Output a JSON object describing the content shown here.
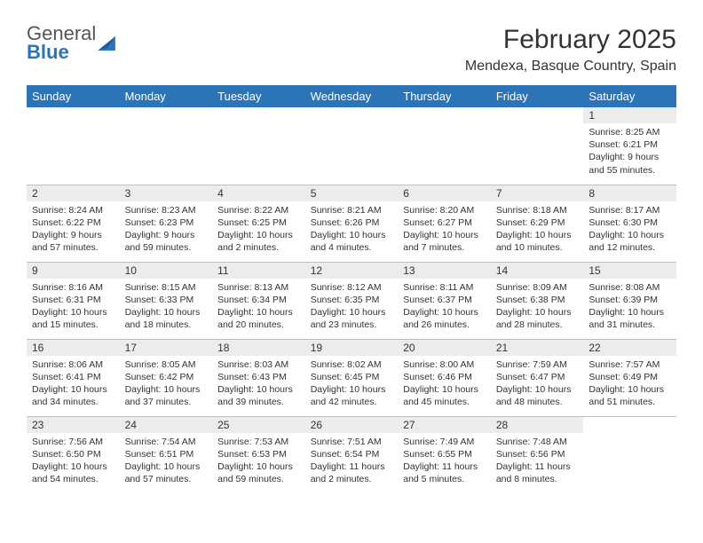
{
  "brand": {
    "line1": "General",
    "line2": "Blue"
  },
  "title": "February 2025",
  "location": "Mendexa, Basque Country, Spain",
  "colors": {
    "header_bg": "#2b74b8",
    "header_text": "#ffffff",
    "daynum_bg": "#ececec",
    "border": "#bfbfbf",
    "text": "#333333",
    "background": "#ffffff"
  },
  "day_headers": [
    "Sunday",
    "Monday",
    "Tuesday",
    "Wednesday",
    "Thursday",
    "Friday",
    "Saturday"
  ],
  "weeks": [
    [
      {
        "n": "",
        "sr": "",
        "ss": "",
        "dl": ""
      },
      {
        "n": "",
        "sr": "",
        "ss": "",
        "dl": ""
      },
      {
        "n": "",
        "sr": "",
        "ss": "",
        "dl": ""
      },
      {
        "n": "",
        "sr": "",
        "ss": "",
        "dl": ""
      },
      {
        "n": "",
        "sr": "",
        "ss": "",
        "dl": ""
      },
      {
        "n": "",
        "sr": "",
        "ss": "",
        "dl": ""
      },
      {
        "n": "1",
        "sr": "Sunrise: 8:25 AM",
        "ss": "Sunset: 6:21 PM",
        "dl": "Daylight: 9 hours and 55 minutes."
      }
    ],
    [
      {
        "n": "2",
        "sr": "Sunrise: 8:24 AM",
        "ss": "Sunset: 6:22 PM",
        "dl": "Daylight: 9 hours and 57 minutes."
      },
      {
        "n": "3",
        "sr": "Sunrise: 8:23 AM",
        "ss": "Sunset: 6:23 PM",
        "dl": "Daylight: 9 hours and 59 minutes."
      },
      {
        "n": "4",
        "sr": "Sunrise: 8:22 AM",
        "ss": "Sunset: 6:25 PM",
        "dl": "Daylight: 10 hours and 2 minutes."
      },
      {
        "n": "5",
        "sr": "Sunrise: 8:21 AM",
        "ss": "Sunset: 6:26 PM",
        "dl": "Daylight: 10 hours and 4 minutes."
      },
      {
        "n": "6",
        "sr": "Sunrise: 8:20 AM",
        "ss": "Sunset: 6:27 PM",
        "dl": "Daylight: 10 hours and 7 minutes."
      },
      {
        "n": "7",
        "sr": "Sunrise: 8:18 AM",
        "ss": "Sunset: 6:29 PM",
        "dl": "Daylight: 10 hours and 10 minutes."
      },
      {
        "n": "8",
        "sr": "Sunrise: 8:17 AM",
        "ss": "Sunset: 6:30 PM",
        "dl": "Daylight: 10 hours and 12 minutes."
      }
    ],
    [
      {
        "n": "9",
        "sr": "Sunrise: 8:16 AM",
        "ss": "Sunset: 6:31 PM",
        "dl": "Daylight: 10 hours and 15 minutes."
      },
      {
        "n": "10",
        "sr": "Sunrise: 8:15 AM",
        "ss": "Sunset: 6:33 PM",
        "dl": "Daylight: 10 hours and 18 minutes."
      },
      {
        "n": "11",
        "sr": "Sunrise: 8:13 AM",
        "ss": "Sunset: 6:34 PM",
        "dl": "Daylight: 10 hours and 20 minutes."
      },
      {
        "n": "12",
        "sr": "Sunrise: 8:12 AM",
        "ss": "Sunset: 6:35 PM",
        "dl": "Daylight: 10 hours and 23 minutes."
      },
      {
        "n": "13",
        "sr": "Sunrise: 8:11 AM",
        "ss": "Sunset: 6:37 PM",
        "dl": "Daylight: 10 hours and 26 minutes."
      },
      {
        "n": "14",
        "sr": "Sunrise: 8:09 AM",
        "ss": "Sunset: 6:38 PM",
        "dl": "Daylight: 10 hours and 28 minutes."
      },
      {
        "n": "15",
        "sr": "Sunrise: 8:08 AM",
        "ss": "Sunset: 6:39 PM",
        "dl": "Daylight: 10 hours and 31 minutes."
      }
    ],
    [
      {
        "n": "16",
        "sr": "Sunrise: 8:06 AM",
        "ss": "Sunset: 6:41 PM",
        "dl": "Daylight: 10 hours and 34 minutes."
      },
      {
        "n": "17",
        "sr": "Sunrise: 8:05 AM",
        "ss": "Sunset: 6:42 PM",
        "dl": "Daylight: 10 hours and 37 minutes."
      },
      {
        "n": "18",
        "sr": "Sunrise: 8:03 AM",
        "ss": "Sunset: 6:43 PM",
        "dl": "Daylight: 10 hours and 39 minutes."
      },
      {
        "n": "19",
        "sr": "Sunrise: 8:02 AM",
        "ss": "Sunset: 6:45 PM",
        "dl": "Daylight: 10 hours and 42 minutes."
      },
      {
        "n": "20",
        "sr": "Sunrise: 8:00 AM",
        "ss": "Sunset: 6:46 PM",
        "dl": "Daylight: 10 hours and 45 minutes."
      },
      {
        "n": "21",
        "sr": "Sunrise: 7:59 AM",
        "ss": "Sunset: 6:47 PM",
        "dl": "Daylight: 10 hours and 48 minutes."
      },
      {
        "n": "22",
        "sr": "Sunrise: 7:57 AM",
        "ss": "Sunset: 6:49 PM",
        "dl": "Daylight: 10 hours and 51 minutes."
      }
    ],
    [
      {
        "n": "23",
        "sr": "Sunrise: 7:56 AM",
        "ss": "Sunset: 6:50 PM",
        "dl": "Daylight: 10 hours and 54 minutes."
      },
      {
        "n": "24",
        "sr": "Sunrise: 7:54 AM",
        "ss": "Sunset: 6:51 PM",
        "dl": "Daylight: 10 hours and 57 minutes."
      },
      {
        "n": "25",
        "sr": "Sunrise: 7:53 AM",
        "ss": "Sunset: 6:53 PM",
        "dl": "Daylight: 10 hours and 59 minutes."
      },
      {
        "n": "26",
        "sr": "Sunrise: 7:51 AM",
        "ss": "Sunset: 6:54 PM",
        "dl": "Daylight: 11 hours and 2 minutes."
      },
      {
        "n": "27",
        "sr": "Sunrise: 7:49 AM",
        "ss": "Sunset: 6:55 PM",
        "dl": "Daylight: 11 hours and 5 minutes."
      },
      {
        "n": "28",
        "sr": "Sunrise: 7:48 AM",
        "ss": "Sunset: 6:56 PM",
        "dl": "Daylight: 11 hours and 8 minutes."
      },
      {
        "n": "",
        "sr": "",
        "ss": "",
        "dl": ""
      }
    ]
  ]
}
